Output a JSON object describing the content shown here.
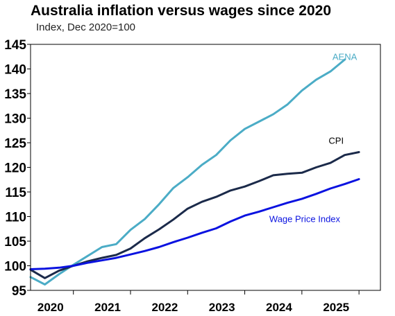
{
  "chart_data": {
    "type": "line",
    "title": "Australia inflation versus wages since 2020",
    "subtitle": "Index, Dec 2020=100",
    "xlabel": "",
    "ylabel": "",
    "ylim": [
      95,
      145
    ],
    "yticks": [
      95,
      100,
      105,
      110,
      115,
      120,
      125,
      130,
      135,
      140,
      145
    ],
    "xlim": [
      2019.75,
      2025.875
    ],
    "xticks": [
      {
        "label": "2020",
        "value": 2020.1
      },
      {
        "label": "2021",
        "value": 2021.1
      },
      {
        "label": "2022",
        "value": 2022.1
      },
      {
        "label": "2023",
        "value": 2023.1
      },
      {
        "label": "2024",
        "value": 2024.1
      },
      {
        "label": "2025",
        "value": 2025.1
      }
    ],
    "grid": false,
    "legend": "inline labels",
    "series": [
      {
        "name": "AENA",
        "color": "#4bacc6",
        "label_at": [
          2025.25,
          141.8
        ],
        "x": [
          2019.75,
          2020.0,
          2020.25,
          2020.5,
          2020.75,
          2021.0,
          2021.25,
          2021.5,
          2021.75,
          2022.0,
          2022.25,
          2022.5,
          2022.75,
          2023.0,
          2023.25,
          2023.5,
          2023.75,
          2024.0,
          2024.25,
          2024.5,
          2024.75,
          2025.0,
          2025.25
        ],
        "values": [
          97.7,
          96.2,
          98.3,
          100.2,
          102.0,
          103.8,
          104.4,
          107.3,
          109.5,
          112.5,
          115.8,
          118.0,
          120.5,
          122.5,
          125.5,
          127.8,
          129.3,
          130.8,
          132.8,
          135.6,
          137.8,
          139.5,
          141.9
        ]
      },
      {
        "name": "CPI",
        "color": "#1b2a4a",
        "label_at": [
          2025.1,
          124.8
        ],
        "x": [
          2019.75,
          2020.0,
          2020.25,
          2020.5,
          2020.75,
          2021.0,
          2021.25,
          2021.5,
          2021.75,
          2022.0,
          2022.25,
          2022.5,
          2022.75,
          2023.0,
          2023.25,
          2023.5,
          2023.75,
          2024.0,
          2024.25,
          2024.5,
          2024.75,
          2025.0,
          2025.25,
          2025.5
        ],
        "values": [
          99.2,
          97.5,
          99.0,
          100.0,
          100.9,
          101.6,
          102.2,
          103.5,
          105.6,
          107.4,
          109.4,
          111.6,
          113.0,
          114.0,
          115.3,
          116.1,
          117.2,
          118.4,
          118.7,
          118.9,
          120.0,
          120.9,
          122.5,
          123.1
        ]
      },
      {
        "name": "Wage Price Index",
        "color": "#0a12e0",
        "label_at": [
          2024.55,
          108.9
        ],
        "x": [
          2019.75,
          2020.0,
          2020.25,
          2020.5,
          2020.75,
          2021.0,
          2021.25,
          2021.5,
          2021.75,
          2022.0,
          2022.25,
          2022.5,
          2022.75,
          2023.0,
          2023.25,
          2023.5,
          2023.75,
          2024.0,
          2024.25,
          2024.5,
          2024.75,
          2025.0,
          2025.25,
          2025.5
        ],
        "values": [
          99.3,
          99.4,
          99.6,
          100.0,
          100.6,
          101.1,
          101.6,
          102.3,
          103.0,
          103.8,
          104.8,
          105.7,
          106.7,
          107.6,
          109.0,
          110.2,
          111.0,
          111.9,
          112.8,
          113.6,
          114.6,
          115.7,
          116.6,
          117.6
        ]
      }
    ]
  }
}
